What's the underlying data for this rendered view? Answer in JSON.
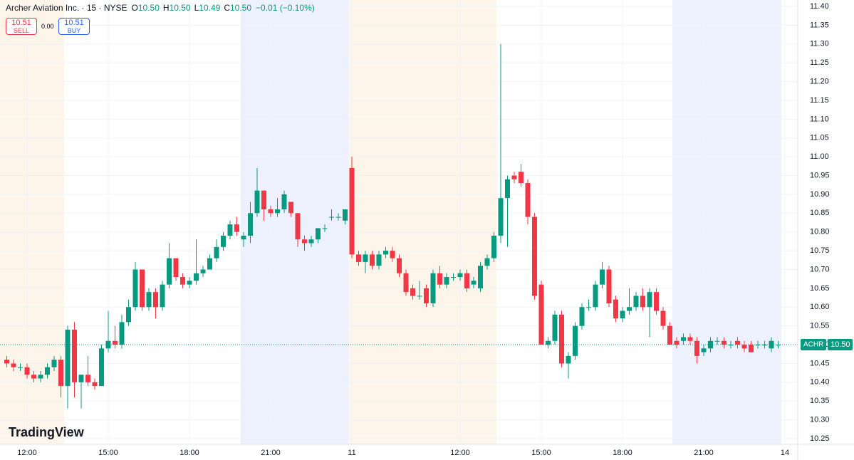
{
  "header": {
    "title": "Archer Aviation Inc. · 15 · NYSE",
    "ohlc": [
      {
        "label": "O",
        "value": "10.50"
      },
      {
        "label": "H",
        "value": "10.50"
      },
      {
        "label": "L",
        "value": "10.49"
      },
      {
        "label": "C",
        "value": "10.50"
      }
    ],
    "change": "−0.01 (−0.10%)",
    "sell": {
      "price": "10.51",
      "label": "SELL"
    },
    "spread": "0.00",
    "buy": {
      "price": "10.51",
      "label": "BUY"
    },
    "watermark": "TradingView"
  },
  "chart_data": {
    "type": "candlestick",
    "up_color": "#089981",
    "down_color": "#f23645",
    "series": {
      "open": [
        10.46,
        10.45,
        10.44,
        10.44,
        10.42,
        10.41,
        10.42,
        10.44,
        10.46,
        10.39,
        10.54,
        10.4,
        10.42,
        10.4,
        10.39,
        10.49,
        10.51,
        10.5,
        10.56,
        10.6,
        10.7,
        10.6,
        10.64,
        10.6,
        10.66,
        10.73,
        10.68,
        10.66,
        10.67,
        10.69,
        10.7,
        10.73,
        10.76,
        10.79,
        10.82,
        10.78,
        10.79,
        10.85,
        10.91,
        10.86,
        10.85,
        10.86,
        10.88,
        10.85,
        10.78,
        10.77,
        10.78,
        10.81,
        10.84,
        10.84,
        10.83,
        10.97,
        10.74,
        10.72,
        10.74,
        10.71,
        10.74,
        10.75,
        10.73,
        10.69,
        10.65,
        10.63,
        10.65,
        10.61,
        10.69,
        10.66,
        10.68,
        10.68,
        10.69,
        10.66,
        10.65,
        10.71,
        10.73,
        10.79,
        10.89,
        10.95,
        10.96,
        10.93,
        10.84,
        10.66,
        10.5,
        10.51,
        10.58,
        10.45,
        10.47,
        10.55,
        10.6,
        10.6,
        10.66,
        10.7,
        10.62,
        10.57,
        10.59,
        10.6,
        10.63,
        10.6,
        10.64,
        10.59,
        10.55,
        10.51,
        10.51,
        10.52,
        10.51,
        10.48,
        10.49,
        10.51,
        10.51,
        10.5,
        10.51,
        10.5,
        10.5,
        10.5,
        10.5,
        10.49,
        10.5
      ],
      "high": [
        10.47,
        10.46,
        10.45,
        10.45,
        10.43,
        10.43,
        10.45,
        10.47,
        10.47,
        10.55,
        10.56,
        10.42,
        10.47,
        10.41,
        10.5,
        10.59,
        10.55,
        10.58,
        10.62,
        10.72,
        10.7,
        10.65,
        10.65,
        10.67,
        10.77,
        10.73,
        10.69,
        10.68,
        10.78,
        10.71,
        10.74,
        10.78,
        10.8,
        10.83,
        10.84,
        10.8,
        10.88,
        10.97,
        10.91,
        10.87,
        10.89,
        10.91,
        10.88,
        10.85,
        10.79,
        10.79,
        10.81,
        10.82,
        10.86,
        10.85,
        10.86,
        11.0,
        10.75,
        10.75,
        10.75,
        10.75,
        10.76,
        10.76,
        10.74,
        10.7,
        10.66,
        10.67,
        10.66,
        10.7,
        10.71,
        10.69,
        10.69,
        10.7,
        10.7,
        10.68,
        10.72,
        10.74,
        10.8,
        11.3,
        10.95,
        10.96,
        10.98,
        10.94,
        10.85,
        10.67,
        10.52,
        10.59,
        10.59,
        10.48,
        10.56,
        10.61,
        10.62,
        10.67,
        10.72,
        10.71,
        10.63,
        10.6,
        10.65,
        10.64,
        10.65,
        10.65,
        10.65,
        10.6,
        10.56,
        10.52,
        10.53,
        10.53,
        10.52,
        10.5,
        10.52,
        10.52,
        10.52,
        10.51,
        10.52,
        10.51,
        10.51,
        10.51,
        10.51,
        10.52,
        10.51
      ],
      "low": [
        10.44,
        10.43,
        10.43,
        10.41,
        10.4,
        10.4,
        10.41,
        10.43,
        10.36,
        10.33,
        10.36,
        10.33,
        10.39,
        10.38,
        10.39,
        10.48,
        10.49,
        10.49,
        10.55,
        10.59,
        10.59,
        10.59,
        10.57,
        10.59,
        10.65,
        10.67,
        10.65,
        10.65,
        10.66,
        10.68,
        10.7,
        10.72,
        10.75,
        10.78,
        10.79,
        10.76,
        10.77,
        10.84,
        10.83,
        10.84,
        10.84,
        10.85,
        10.84,
        10.76,
        10.75,
        10.76,
        10.77,
        10.8,
        10.83,
        10.83,
        10.82,
        10.73,
        10.71,
        10.69,
        10.7,
        10.7,
        10.73,
        10.72,
        10.68,
        10.63,
        10.62,
        10.62,
        10.6,
        10.6,
        10.65,
        10.65,
        10.67,
        10.67,
        10.64,
        10.65,
        10.64,
        10.7,
        10.72,
        10.77,
        10.76,
        10.93,
        10.92,
        10.82,
        10.62,
        10.5,
        10.49,
        10.5,
        10.44,
        10.41,
        10.46,
        10.54,
        10.59,
        10.59,
        10.65,
        10.6,
        10.56,
        10.56,
        10.58,
        10.59,
        10.59,
        10.52,
        10.58,
        10.54,
        10.5,
        10.49,
        10.5,
        10.5,
        10.45,
        10.47,
        10.48,
        10.5,
        10.49,
        10.49,
        10.49,
        10.48,
        10.48,
        10.49,
        10.49,
        10.48,
        10.49
      ],
      "close": [
        10.45,
        10.44,
        10.44,
        10.42,
        10.41,
        10.42,
        10.44,
        10.46,
        10.39,
        10.54,
        10.4,
        10.42,
        10.4,
        10.39,
        10.49,
        10.51,
        10.5,
        10.56,
        10.6,
        10.7,
        10.6,
        10.64,
        10.6,
        10.66,
        10.73,
        10.68,
        10.66,
        10.67,
        10.69,
        10.7,
        10.73,
        10.76,
        10.79,
        10.82,
        10.8,
        10.79,
        10.85,
        10.91,
        10.86,
        10.85,
        10.86,
        10.9,
        10.85,
        10.78,
        10.77,
        10.78,
        10.81,
        10.81,
        10.84,
        10.84,
        10.86,
        10.74,
        10.72,
        10.74,
        10.71,
        10.74,
        10.75,
        10.73,
        10.69,
        10.64,
        10.63,
        10.63,
        10.61,
        10.69,
        10.66,
        10.68,
        10.68,
        10.69,
        10.65,
        10.67,
        10.71,
        10.73,
        10.79,
        10.89,
        10.94,
        10.94,
        10.93,
        10.84,
        10.63,
        10.5,
        10.51,
        10.58,
        10.45,
        10.47,
        10.55,
        10.6,
        10.6,
        10.66,
        10.7,
        10.61,
        10.57,
        10.59,
        10.6,
        10.63,
        10.6,
        10.64,
        10.59,
        10.55,
        10.5,
        10.5,
        10.52,
        10.51,
        10.47,
        10.49,
        10.51,
        10.51,
        10.5,
        10.5,
        10.5,
        10.49,
        10.48,
        10.5,
        10.5,
        10.51,
        10.5
      ]
    },
    "ylim": [
      10.23,
      11.41
    ],
    "yticks": [
      {
        "value": 10.25,
        "label": "10.25"
      },
      {
        "value": 10.3,
        "label": "10.30"
      },
      {
        "value": 10.35,
        "label": "10.35"
      },
      {
        "value": 10.4,
        "label": "10.40"
      },
      {
        "value": 10.45,
        "label": "10.45"
      },
      {
        "value": 10.5,
        "label": "10.50"
      },
      {
        "value": 10.55,
        "label": "10.55"
      },
      {
        "value": 10.6,
        "label": "10.60"
      },
      {
        "value": 10.65,
        "label": "10.65"
      },
      {
        "value": 10.7,
        "label": "10.70"
      },
      {
        "value": 10.75,
        "label": "10.75"
      },
      {
        "value": 10.8,
        "label": "10.80"
      },
      {
        "value": 10.85,
        "label": "10.85"
      },
      {
        "value": 10.9,
        "label": "10.90"
      },
      {
        "value": 10.95,
        "label": "10.95"
      },
      {
        "value": 11,
        "label": "11.00"
      },
      {
        "value": 11.05,
        "label": "11.05"
      },
      {
        "value": 11.1,
        "label": "11.10"
      },
      {
        "value": 11.15,
        "label": "11.15"
      },
      {
        "value": 11.2,
        "label": "11.20"
      },
      {
        "value": 11.25,
        "label": "11.25"
      },
      {
        "value": 11.3,
        "label": "11.30"
      },
      {
        "value": 11.35,
        "label": "11.35"
      },
      {
        "value": 11.4,
        "label": "11.40"
      }
    ],
    "xticks": [
      {
        "value": 3,
        "label": "12:00"
      },
      {
        "value": 15,
        "label": "15:00"
      },
      {
        "value": 27,
        "label": "18:00"
      },
      {
        "value": 39,
        "label": "21:00"
      },
      {
        "value": 51,
        "label": "11"
      },
      {
        "value": 67,
        "label": "12:00"
      },
      {
        "value": 79,
        "label": "15:00"
      },
      {
        "value": 91,
        "label": "18:00"
      },
      {
        "value": 103,
        "label": "21:00"
      },
      {
        "value": 115,
        "label": "14"
      }
    ],
    "grid": true,
    "price_line": {
      "symbol": "ACHR",
      "value": 10.5,
      "label": "10.50",
      "color": "#089981"
    }
  }
}
